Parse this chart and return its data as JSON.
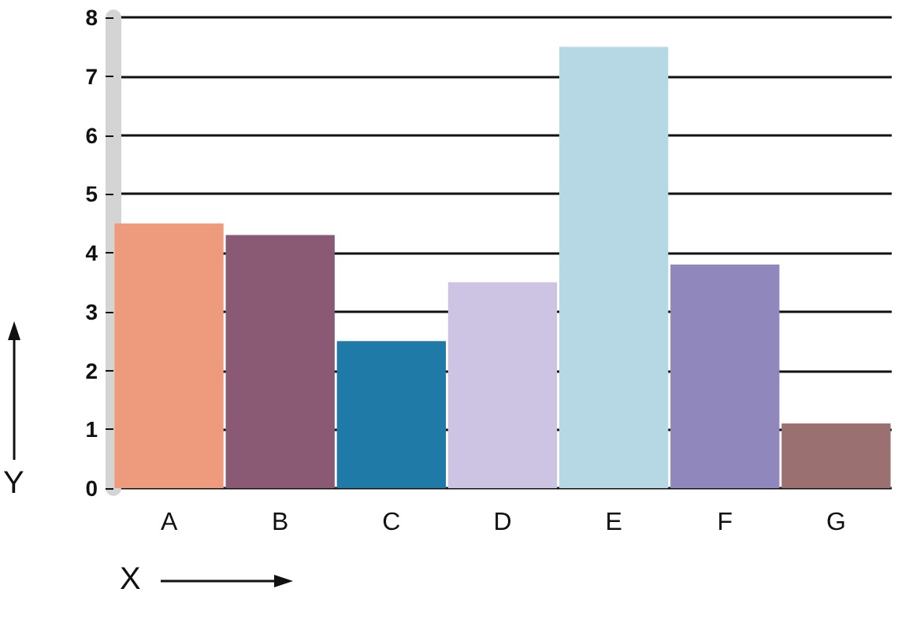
{
  "chart_data": {
    "type": "bar",
    "xlabel": "X",
    "ylabel": "Y",
    "categories": [
      "A",
      "B",
      "C",
      "D",
      "E",
      "F",
      "G"
    ],
    "values": [
      4.5,
      4.3,
      2.5,
      3.5,
      7.5,
      3.8,
      1.1
    ],
    "colors": [
      "#ee9a7c",
      "#8a5a74",
      "#1f7aa8",
      "#cdc4e4",
      "#b6d8e4",
      "#9088bc",
      "#9a7070"
    ],
    "ylim": [
      0,
      8
    ],
    "yticks": [
      0,
      1,
      2,
      3,
      4,
      5,
      6,
      7,
      8
    ],
    "grid": "y"
  }
}
